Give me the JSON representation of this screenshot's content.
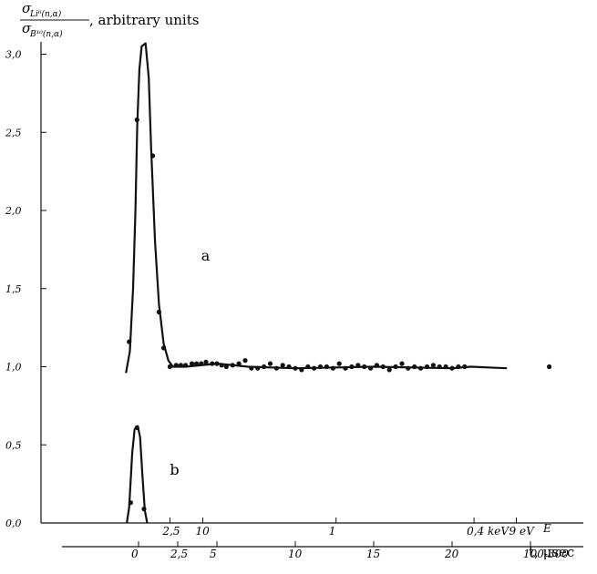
{
  "chart_data": {
    "type": "line",
    "ylabel": {
      "numerator": "σ",
      "numerator_sub": "Li⁶(n,α)",
      "denominator": "σ",
      "denominator_sub": "B¹⁰(n,α)",
      "suffix": ", arbitrary units"
    },
    "y_ticks": [
      "0,0",
      "0,5",
      "1,0",
      "1,5",
      "2,0",
      "2,5",
      "3,0"
    ],
    "y_tick_values": [
      0,
      0.5,
      1.0,
      1.5,
      2.0,
      2.5,
      3.0
    ],
    "ylim": [
      0,
      3.2
    ],
    "energy_axis": {
      "label": "E",
      "ticks": [
        {
          "label": "2,5",
          "t": 2
        },
        {
          "label": "10",
          "t": 4.1
        },
        {
          "label": "1",
          "t": 12.6
        },
        {
          "label": "0,4 keV",
          "t": 21.4
        },
        {
          "label": "9 eV",
          "t": 24.1
        }
      ]
    },
    "time_axis": {
      "label": "t, μsec",
      "ticks": [
        {
          "label": "0",
          "t": 0
        },
        {
          "label": "2,5",
          "t": 2.5
        },
        {
          "label": "5",
          "t": 5
        },
        {
          "label": "10",
          "t": 10
        },
        {
          "label": "15",
          "t": 15
        },
        {
          "label": "20",
          "t": 20
        },
        {
          "label": "100-300",
          "t": 25
        }
      ]
    },
    "xlim": [
      -5,
      28
    ],
    "series": [
      {
        "label": "a",
        "curve": [
          [
            -0.8,
            0.96
          ],
          [
            -0.55,
            1.1
          ],
          [
            -0.35,
            1.5
          ],
          [
            -0.2,
            2.0
          ],
          [
            -0.08,
            2.55
          ],
          [
            0.05,
            2.9
          ],
          [
            0.2,
            3.05
          ],
          [
            0.45,
            3.07
          ],
          [
            0.65,
            2.85
          ],
          [
            0.8,
            2.4
          ],
          [
            1.05,
            1.8
          ],
          [
            1.3,
            1.4
          ],
          [
            1.6,
            1.15
          ],
          [
            1.9,
            1.04
          ],
          [
            2.2,
            1.0
          ],
          [
            3.0,
            1.0
          ],
          [
            5,
            1.02
          ],
          [
            7,
            1.0
          ],
          [
            10,
            0.99
          ],
          [
            15,
            1.0
          ],
          [
            20,
            0.99
          ],
          [
            21.2,
            1.0
          ],
          [
            23.5,
            0.99
          ]
        ],
        "points": [
          [
            -0.6,
            1.16
          ],
          [
            -0.1,
            2.58
          ],
          [
            0.9,
            2.35
          ],
          [
            1.3,
            1.35
          ],
          [
            1.6,
            1.12
          ],
          [
            2.0,
            1.0
          ],
          [
            2.4,
            1.01
          ],
          [
            2.7,
            1.01
          ],
          [
            3.0,
            1.01
          ],
          [
            3.4,
            1.02
          ],
          [
            3.7,
            1.02
          ],
          [
            4.0,
            1.02
          ],
          [
            4.3,
            1.03
          ],
          [
            4.7,
            1.02
          ],
          [
            5.0,
            1.02
          ],
          [
            5.3,
            1.01
          ],
          [
            5.6,
            1.0
          ],
          [
            6.0,
            1.01
          ],
          [
            6.4,
            1.02
          ],
          [
            6.8,
            1.04
          ],
          [
            7.2,
            0.99
          ],
          [
            7.6,
            0.99
          ],
          [
            8.0,
            1.0
          ],
          [
            8.4,
            1.02
          ],
          [
            8.8,
            0.99
          ],
          [
            9.2,
            1.01
          ],
          [
            9.6,
            1.0
          ],
          [
            10.0,
            0.99
          ],
          [
            10.4,
            0.98
          ],
          [
            10.8,
            1.0
          ],
          [
            11.2,
            0.99
          ],
          [
            11.6,
            1.0
          ],
          [
            12.0,
            1.0
          ],
          [
            12.4,
            0.99
          ],
          [
            12.8,
            1.02
          ],
          [
            13.2,
            0.99
          ],
          [
            13.6,
            1.0
          ],
          [
            14.0,
            1.01
          ],
          [
            14.4,
            1.0
          ],
          [
            14.8,
            0.99
          ],
          [
            15.2,
            1.01
          ],
          [
            15.6,
            1.0
          ],
          [
            16.0,
            0.98
          ],
          [
            16.4,
            1.0
          ],
          [
            16.8,
            1.02
          ],
          [
            17.2,
            0.99
          ],
          [
            17.6,
            1.0
          ],
          [
            18.0,
            0.99
          ],
          [
            18.4,
            1.0
          ],
          [
            18.8,
            1.01
          ],
          [
            19.2,
            1.0
          ],
          [
            19.6,
            1.0
          ],
          [
            20.0,
            0.99
          ],
          [
            20.4,
            1.0
          ],
          [
            20.8,
            1.0
          ],
          [
            26.2,
            1.0
          ]
        ]
      },
      {
        "label": "b",
        "curve": [
          [
            -0.75,
            0.0
          ],
          [
            -0.6,
            0.1
          ],
          [
            -0.4,
            0.45
          ],
          [
            -0.25,
            0.6
          ],
          [
            -0.05,
            0.62
          ],
          [
            0.1,
            0.55
          ],
          [
            0.25,
            0.3
          ],
          [
            0.4,
            0.08
          ],
          [
            0.55,
            0.0
          ]
        ],
        "points": [
          [
            -0.5,
            0.13
          ],
          [
            -0.1,
            0.61
          ],
          [
            0.35,
            0.09
          ]
        ]
      }
    ]
  }
}
